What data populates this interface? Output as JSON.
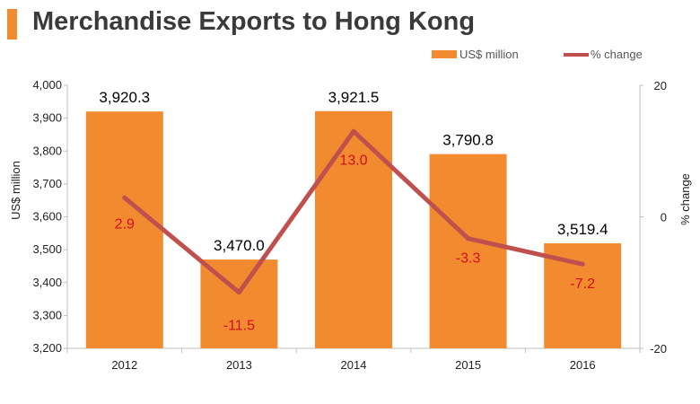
{
  "title": "Merchandise Exports to Hong Kong",
  "colors": {
    "accent": "#f28a30",
    "bar": "#f28a30",
    "line": "#c0504d",
    "line_label": "#d0101c",
    "title": "#3a3a3a"
  },
  "legend": {
    "bar_label": "US$ million",
    "line_label": "% change"
  },
  "chart_data": {
    "type": "bar",
    "categories": [
      "2012",
      "2013",
      "2014",
      "2015",
      "2016"
    ],
    "series": [
      {
        "name": "US$ million",
        "type": "bar",
        "axis": "left",
        "values": [
          3920.3,
          3470.0,
          3921.5,
          3790.8,
          3519.4
        ],
        "labels": [
          "3,920.3",
          "3,470.0",
          "3,921.5",
          "3,790.8",
          "3,519.4"
        ]
      },
      {
        "name": "% change",
        "type": "line",
        "axis": "right",
        "values": [
          2.9,
          -11.5,
          13.0,
          -3.3,
          -7.2
        ],
        "labels": [
          "2.9",
          "-11.5",
          "13.0",
          "-3.3",
          "-7.2"
        ]
      }
    ],
    "ylabel": "US$ million",
    "ylabel_right": "% change",
    "ylim": [
      3200,
      4000
    ],
    "ylim_right": [
      -20,
      20
    ],
    "yticks": [
      "3,200",
      "3,300",
      "3,400",
      "3,500",
      "3,600",
      "3,700",
      "3,800",
      "3,900",
      "4,000"
    ],
    "yticks_right": [
      "-20",
      "0",
      "20"
    ],
    "grid": false,
    "legend_position": "top-right"
  }
}
